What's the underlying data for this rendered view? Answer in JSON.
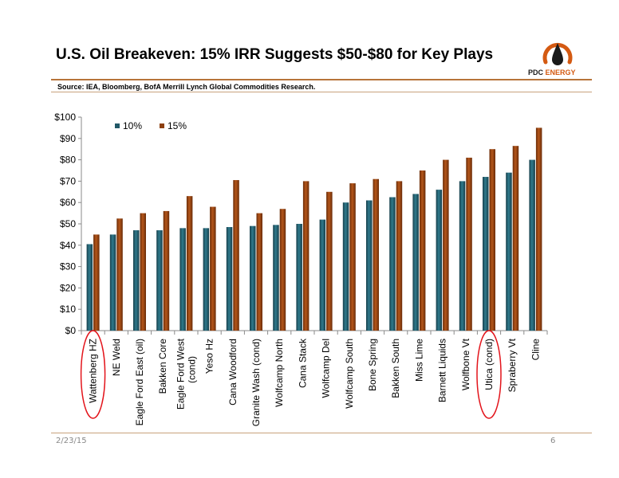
{
  "header": {
    "title": "U.S. Oil Breakeven: 15% IRR Suggests $50-$80 for Key Plays",
    "source": "Source: IEA, Bloomberg, BofA Merrill Lynch Global Commodities Research.",
    "logo_prefix": "PDC ",
    "logo_suffix": "ENERGY",
    "logo_icon": "oil-drop-ring-icon"
  },
  "footer": {
    "date": "2/23/15",
    "page": "6"
  },
  "colors": {
    "series_10": "#215867",
    "series_15": "#8d3f0f",
    "accent": "#d45a12",
    "rule": "#b7743a"
  },
  "chart_data": {
    "type": "bar",
    "title": "",
    "xlabel": "",
    "ylabel": "",
    "ylim": [
      0,
      100
    ],
    "yticks": [
      "$0",
      "$10",
      "$20",
      "$30",
      "$40",
      "$50",
      "$60",
      "$70",
      "$80",
      "$90",
      "$100"
    ],
    "legend_position": "top-left",
    "grid": false,
    "categories": [
      "Wattenberg HZ",
      "NE Weld",
      "Eagle Ford East (oil)",
      "Bakken Core",
      "Eagle Ford West (cond)",
      "Yeso Hz",
      "Cana Woodford",
      "Granite Wash (cond)",
      "Wolfcamp North",
      "Cana Stack",
      "Wolfcamp Del",
      "Wolfcamp South",
      "Bone Spring",
      "Bakken South",
      "Miss Lime",
      "Barnett Liquids",
      "Wolfbone Vt",
      "Utica (cond)",
      "Spraberry Vt",
      "Cline"
    ],
    "series": [
      {
        "name": "10%",
        "values": [
          40.5,
          45,
          47,
          47,
          48,
          48,
          48.5,
          49,
          49.5,
          50,
          52,
          60,
          61,
          62.5,
          64,
          66,
          70,
          72,
          74,
          80
        ]
      },
      {
        "name": "15%",
        "values": [
          45,
          52.5,
          55,
          56,
          63,
          58,
          70.5,
          55,
          57,
          70,
          65,
          69,
          71,
          70,
          75,
          80,
          81,
          85,
          86.5,
          95
        ]
      }
    ],
    "highlighted": [
      "Wattenberg HZ",
      "Utica (cond)"
    ]
  }
}
